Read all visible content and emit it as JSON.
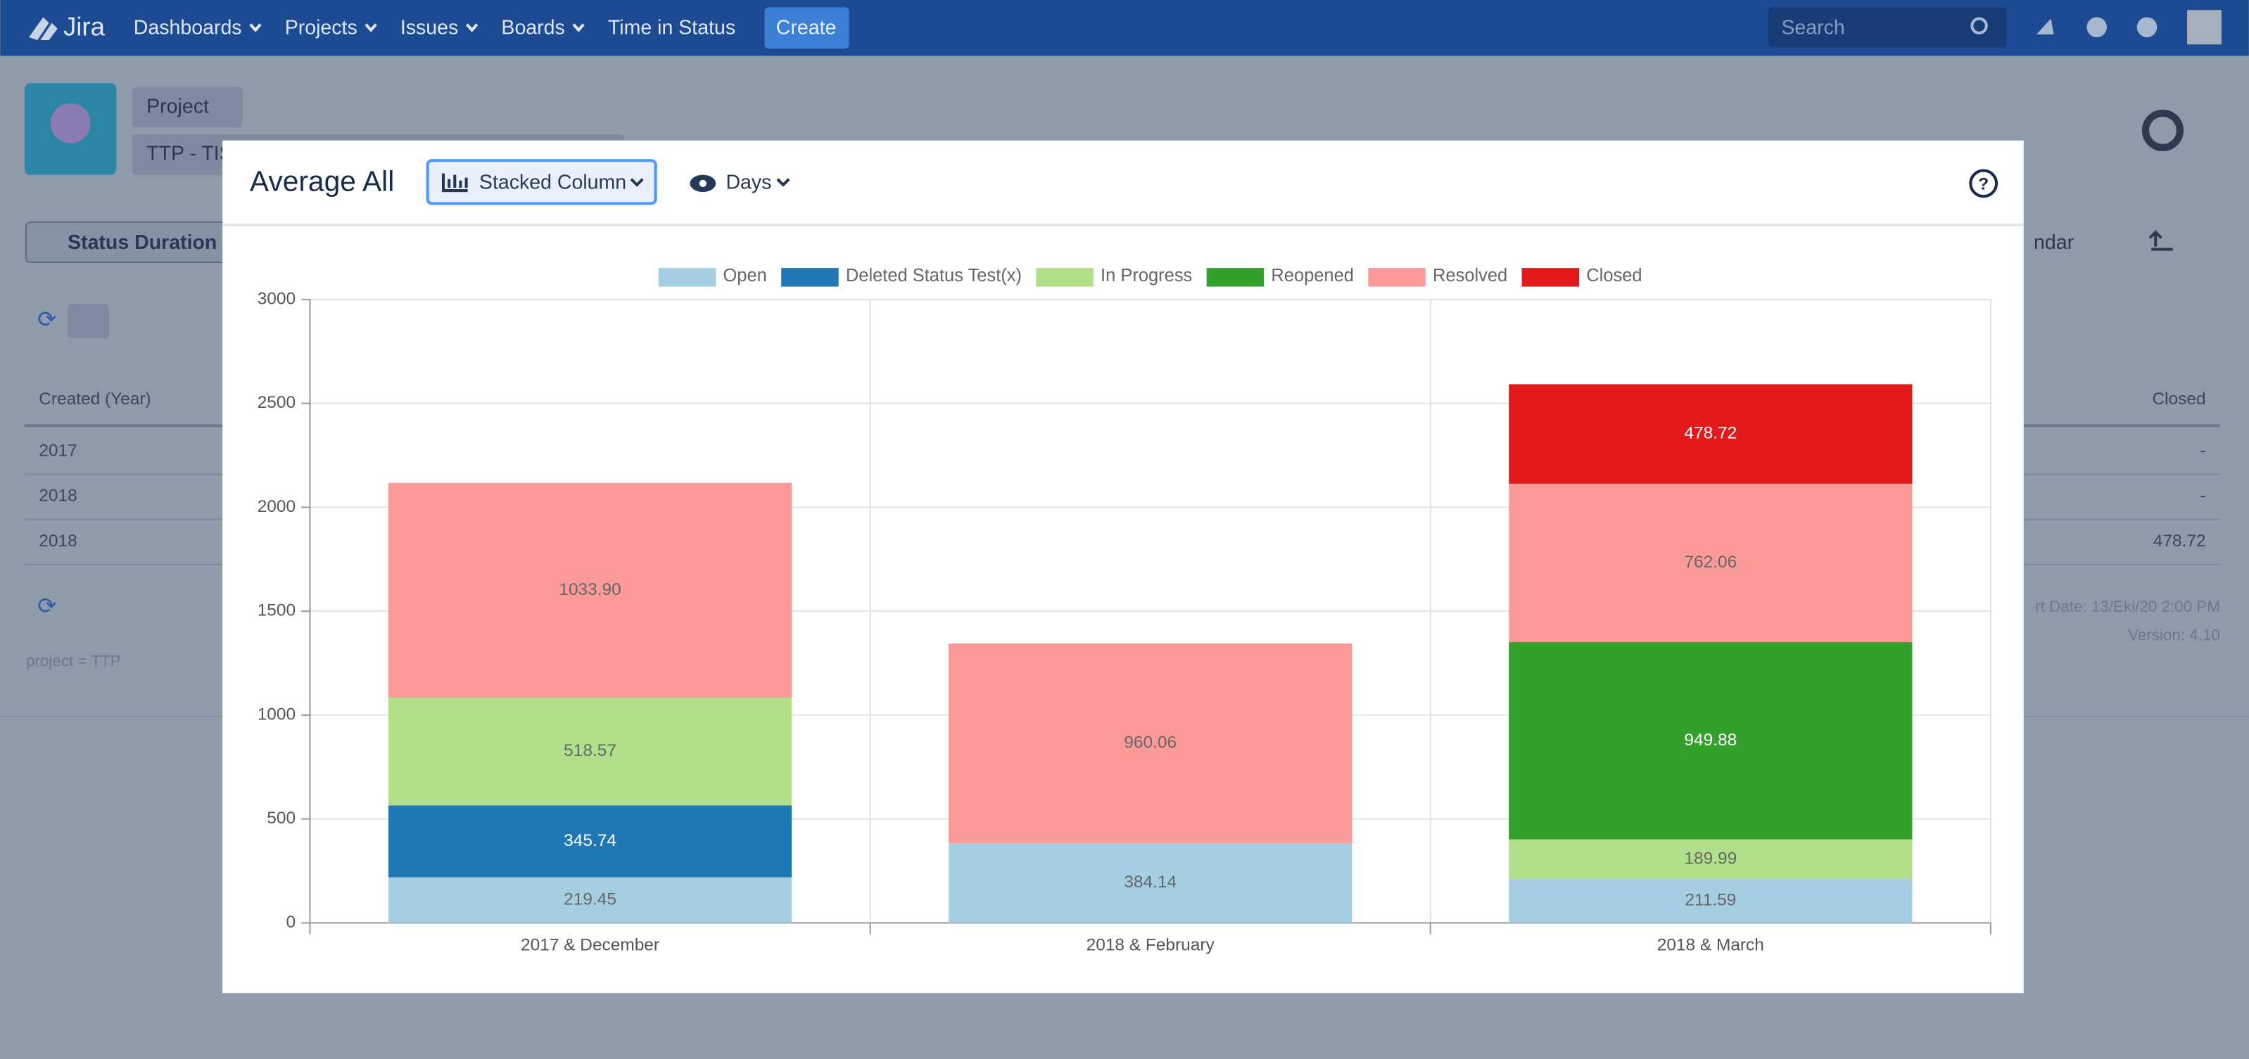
{
  "nav": {
    "logo": "Jira",
    "items": [
      "Dashboards",
      "Projects",
      "Issues",
      "Boards",
      "Time in Status"
    ],
    "create": "Create",
    "search": "Search"
  },
  "header": {
    "project_button": "Project",
    "project_name": "TTP - TIS"
  },
  "toolbar": {
    "report": "Status Duration",
    "calendar": "ndar"
  },
  "table": {
    "columns": [
      "Created (Year)",
      "Closed"
    ],
    "rows": [
      [
        "2017",
        "-"
      ],
      [
        "2018",
        "-"
      ],
      [
        "2018",
        "478.72"
      ]
    ]
  },
  "footer": {
    "report_date": "rt Date: 13/Eki/20 2:00 PM",
    "version": "Version: 4.10",
    "jql": "project = TTP"
  },
  "modal": {
    "title": "Average All",
    "chart_type": "Stacked Column",
    "unit": "Days"
  },
  "chart_data": {
    "type": "bar",
    "stacked": true,
    "categories": [
      "2017 & December",
      "2018 & February",
      "2018 & March"
    ],
    "series": [
      {
        "name": "Open",
        "color": "#a6cee3",
        "values": [
          219.45,
          384.14,
          211.59
        ]
      },
      {
        "name": "Deleted Status Test(x)",
        "color": "#1f78b4",
        "values": [
          345.74,
          null,
          null
        ]
      },
      {
        "name": "In Progress",
        "color": "#b2df8a",
        "values": [
          518.57,
          null,
          189.99
        ]
      },
      {
        "name": "Reopened",
        "color": "#33a02c",
        "values": [
          null,
          null,
          949.88
        ]
      },
      {
        "name": "Resolved",
        "color": "#fb9a99",
        "values": [
          1033.9,
          960.06,
          762.06
        ],
        "value_labels": [
          "1033.90",
          "960.06",
          "762.06"
        ]
      },
      {
        "name": "Closed",
        "color": "#e31a1c",
        "values": [
          null,
          null,
          478.72
        ]
      }
    ],
    "ylim": [
      0,
      3000
    ],
    "yticks": [
      0,
      500,
      1000,
      1500,
      2000,
      2500,
      3000
    ],
    "grid": true,
    "legend": "top"
  }
}
